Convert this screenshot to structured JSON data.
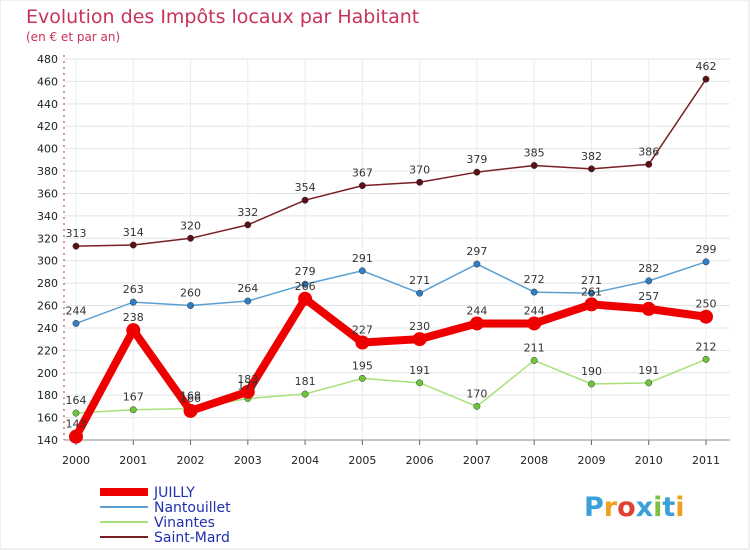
{
  "chart_data": {
    "type": "line",
    "title": "Evolution des Impôts locaux par Habitant",
    "subtitle": "(en € et par an)",
    "categories": [
      "2000",
      "2001",
      "2002",
      "2003",
      "2004",
      "2005",
      "2006",
      "2007",
      "2008",
      "2009",
      "2010",
      "2011"
    ],
    "ylim": [
      140,
      480
    ],
    "yticks": [
      140,
      160,
      180,
      200,
      220,
      240,
      260,
      280,
      300,
      320,
      340,
      360,
      380,
      400,
      420,
      440,
      460,
      480
    ],
    "grid": true,
    "legend_position": "bottom-left",
    "series": [
      {
        "name": "Saint-Mard",
        "color": "#7a1f24",
        "marker": "#5a1016",
        "values": [
          313,
          314,
          320,
          332,
          354,
          367,
          370,
          379,
          385,
          382,
          386,
          462
        ]
      },
      {
        "name": "Nantouillet",
        "color": "#5aa0d2",
        "marker": "#2f7fc4",
        "values": [
          244,
          263,
          260,
          264,
          279,
          291,
          271,
          297,
          272,
          271,
          282,
          299
        ]
      },
      {
        "name": "Vinantes",
        "color": "#a8e07a",
        "marker": "#6cc83a",
        "values": [
          164,
          167,
          168,
          177,
          181,
          195,
          191,
          170,
          211,
          190,
          191,
          212
        ]
      },
      {
        "name": "JUILLY",
        "color": "#ee0000",
        "marker": "#ee0000",
        "values": [
          143,
          238,
          166,
          183,
          266,
          227,
          230,
          244,
          244,
          261,
          257,
          250
        ]
      }
    ],
    "labels": [
      {
        "series": 0,
        "values": [
          "313",
          "314",
          "320",
          "332",
          "354",
          "367",
          "370",
          "379",
          "385",
          "382",
          "386",
          "462"
        ]
      },
      {
        "series": 1,
        "values": [
          "244",
          "263",
          "260",
          "264",
          "279",
          "291",
          "271",
          "297",
          "272",
          "271",
          "282",
          "299"
        ]
      },
      {
        "series": 2,
        "values": [
          "164",
          "167",
          "168",
          "177",
          "181",
          "195",
          "191",
          "170",
          "211",
          "190",
          "191",
          "212"
        ]
      },
      {
        "series": 3,
        "values": [
          "143",
          "238",
          "166",
          "183",
          "266",
          "227",
          "230",
          "244",
          "244",
          "261",
          "257",
          "250"
        ]
      }
    ],
    "legend_order": [
      3,
      1,
      2,
      0
    ]
  },
  "logo": {
    "text": "Proxiti"
  }
}
